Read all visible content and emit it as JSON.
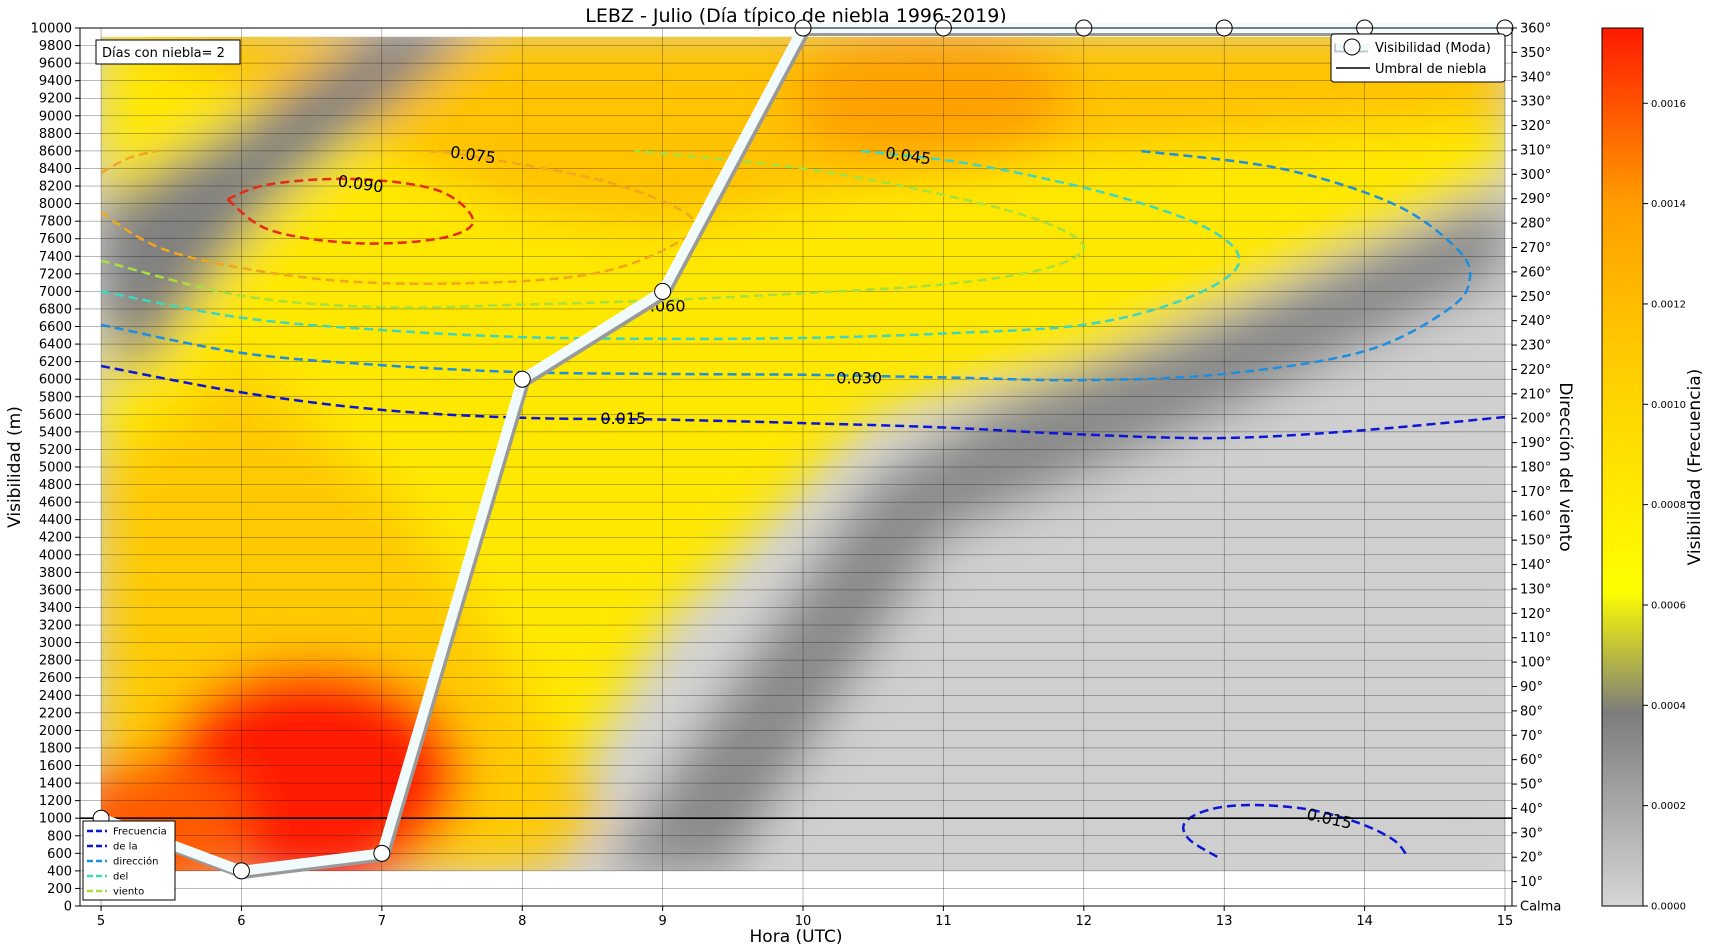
{
  "chart_data": {
    "type": "heatmap",
    "title": "LEBZ - Julio (Día típico de niebla 1996-2019)",
    "xlabel": "Hora (UTC)",
    "ylabel": "Visibilidad (m)",
    "y2label": "Dirección del viento",
    "colorbar_label": "Visibilidad (Frecuencia)",
    "annotation": "Días con niebla= 2",
    "xlim": [
      4.85,
      15.05
    ],
    "ylim": [
      0,
      10000
    ],
    "x_ticks": [
      "5",
      "6",
      "7",
      "8",
      "9",
      "10",
      "11",
      "12",
      "13",
      "14",
      "15"
    ],
    "y_ticks": [
      "0",
      "200",
      "400",
      "600",
      "800",
      "1000",
      "1200",
      "1400",
      "1600",
      "1800",
      "2000",
      "2200",
      "2400",
      "2600",
      "2800",
      "3000",
      "3200",
      "3400",
      "3600",
      "3800",
      "4000",
      "4200",
      "4400",
      "4600",
      "4800",
      "5000",
      "5200",
      "5400",
      "5600",
      "5800",
      "6000",
      "6200",
      "6400",
      "6600",
      "6800",
      "7000",
      "7200",
      "7400",
      "7600",
      "7800",
      "8000",
      "8200",
      "8400",
      "8600",
      "8800",
      "9000",
      "9200",
      "9400",
      "9600",
      "9800",
      "10000"
    ],
    "y2_ticks": [
      "Calma",
      "10°",
      "20°",
      "30°",
      "40°",
      "50°",
      "60°",
      "70°",
      "80°",
      "90°",
      "100°",
      "110°",
      "120°",
      "130°",
      "140°",
      "150°",
      "160°",
      "170°",
      "180°",
      "190°",
      "200°",
      "210°",
      "220°",
      "230°",
      "240°",
      "250°",
      "260°",
      "270°",
      "280°",
      "290°",
      "300°",
      "310°",
      "320°",
      "330°",
      "340°",
      "350°",
      "360°"
    ],
    "colorbar_ticks": [
      "0.0000",
      "0.0002",
      "0.0004",
      "0.0006",
      "0.0008",
      "0.0010",
      "0.0012",
      "0.0014",
      "0.0016"
    ],
    "colorbar_range": [
      0,
      0.00175
    ],
    "grid": true,
    "series": [
      {
        "name": "Visibilidad (Moda)",
        "type": "line",
        "x": [
          5,
          6,
          7,
          8,
          9,
          10,
          11,
          12,
          13,
          14,
          15
        ],
        "y": [
          1000,
          400,
          600,
          6000,
          7000,
          10000,
          10000,
          10000,
          10000,
          10000,
          10000
        ]
      },
      {
        "name": "Umbral de niebla",
        "type": "hline",
        "y": 1000
      }
    ],
    "contours": [
      {
        "level": "0.015",
        "color": "#0b16d8",
        "points": [
          [
            5,
            6150
          ],
          [
            6,
            5850
          ],
          [
            7,
            5650
          ],
          [
            8,
            5560
          ],
          [
            9,
            5540
          ],
          [
            10,
            5500
          ],
          [
            11,
            5450
          ],
          [
            12,
            5370
          ],
          [
            13,
            5330
          ],
          [
            14,
            5420
          ],
          [
            15,
            5570
          ]
        ]
      },
      {
        "level": "0.015",
        "color": "#0b16d8",
        "points": [
          [
            12.95,
            560
          ],
          [
            12.75,
            760
          ],
          [
            12.72,
            950
          ],
          [
            12.9,
            1100
          ],
          [
            13.2,
            1150
          ],
          [
            13.6,
            1100
          ],
          [
            13.95,
            950
          ],
          [
            14.2,
            760
          ],
          [
            14.3,
            580
          ]
        ]
      },
      {
        "level": "0.030",
        "color": "#1c8fe0",
        "points": [
          [
            5,
            6620
          ],
          [
            6,
            6300
          ],
          [
            7,
            6160
          ],
          [
            8,
            6080
          ],
          [
            9,
            6060
          ],
          [
            10,
            6050
          ],
          [
            11,
            6020
          ],
          [
            12,
            5990
          ],
          [
            13,
            6060
          ],
          [
            14,
            6320
          ],
          [
            14.6,
            6800
          ],
          [
            14.75,
            7150
          ],
          [
            14.65,
            7500
          ],
          [
            14.2,
            8000
          ],
          [
            13.4,
            8400
          ],
          [
            12.4,
            8600
          ]
        ]
      },
      {
        "level": "0.045",
        "color": "#3fd6c0",
        "points": [
          [
            5,
            7000
          ],
          [
            6,
            6700
          ],
          [
            7,
            6560
          ],
          [
            8,
            6480
          ],
          [
            9,
            6460
          ],
          [
            10,
            6470
          ],
          [
            11,
            6520
          ],
          [
            12,
            6620
          ],
          [
            12.7,
            6900
          ],
          [
            13.1,
            7300
          ],
          [
            12.9,
            7700
          ],
          [
            12.2,
            8100
          ],
          [
            11.2,
            8450
          ],
          [
            10.4,
            8600
          ]
        ]
      },
      {
        "level": "0.060",
        "color": "#a6df3f",
        "points": [
          [
            5,
            7350
          ],
          [
            6,
            6950
          ],
          [
            7,
            6820
          ],
          [
            8,
            6850
          ],
          [
            9,
            6900
          ],
          [
            10,
            6980
          ],
          [
            11,
            7080
          ],
          [
            11.7,
            7250
          ],
          [
            12,
            7500
          ],
          [
            11.7,
            7800
          ],
          [
            11,
            8100
          ],
          [
            10,
            8400
          ],
          [
            8.8,
            8600
          ]
        ]
      },
      {
        "level": "0.075",
        "color": "#f1a61f",
        "points": [
          [
            5,
            7900
          ],
          [
            5.5,
            7450
          ],
          [
            6.5,
            7150
          ],
          [
            7.5,
            7090
          ],
          [
            8.5,
            7200
          ],
          [
            9.1,
            7550
          ],
          [
            9.2,
            7850
          ],
          [
            8.6,
            8250
          ],
          [
            7.6,
            8550
          ],
          [
            7.3,
            8600
          ]
        ]
      },
      {
        "level": "0.075",
        "color": "#f1a61f",
        "points": [
          [
            5,
            8350
          ],
          [
            5.2,
            8520
          ],
          [
            5.4,
            8600
          ]
        ]
      },
      {
        "level": "0.090",
        "color": "#e62a16",
        "points": [
          [
            5.9,
            8050
          ],
          [
            6.2,
            7700
          ],
          [
            6.8,
            7550
          ],
          [
            7.4,
            7600
          ],
          [
            7.65,
            7800
          ],
          [
            7.4,
            8150
          ],
          [
            6.8,
            8280
          ],
          [
            6.2,
            8220
          ],
          [
            5.9,
            8050
          ]
        ]
      }
    ],
    "contour_legend": [
      "Frecuencia",
      "de  la",
      "dirección",
      "del",
      "viento"
    ],
    "heat_bands": [
      {
        "label": "hotspot",
        "x": 6.4,
        "y": 1500,
        "weight": 1.0
      }
    ]
  }
}
